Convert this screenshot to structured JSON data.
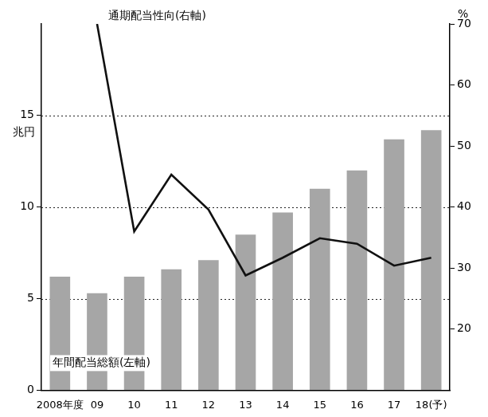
{
  "chart_data": {
    "type": "bar",
    "categories": [
      "2008年度",
      "09",
      "10",
      "11",
      "12",
      "13",
      "14",
      "15",
      "16",
      "17",
      "18(予)"
    ],
    "series": [
      {
        "name": "年間配当総額(左軸)",
        "type": "bar",
        "color": "#a6a6a6",
        "values": [
          6.2,
          5.3,
          6.2,
          6.6,
          7.1,
          8.5,
          9.7,
          11.0,
          12.0,
          13.7,
          14.2
        ]
      },
      {
        "name": "通期配当性向(右軸)",
        "type": "line",
        "color": "#111111",
        "axis": "y2",
        "values": [
          null,
          70,
          36,
          45.3,
          39.6,
          28.8,
          31.7,
          34.9,
          34,
          30.4,
          31.7
        ]
      }
    ],
    "y_label": "兆円",
    "y2_label": "%",
    "ylim": [
      0,
      20
    ],
    "yticks": [
      0,
      5,
      10,
      15
    ],
    "y2lim": [
      10,
      70
    ],
    "y2ticks": [
      20,
      30,
      40,
      50,
      60,
      70
    ],
    "grid": true
  }
}
